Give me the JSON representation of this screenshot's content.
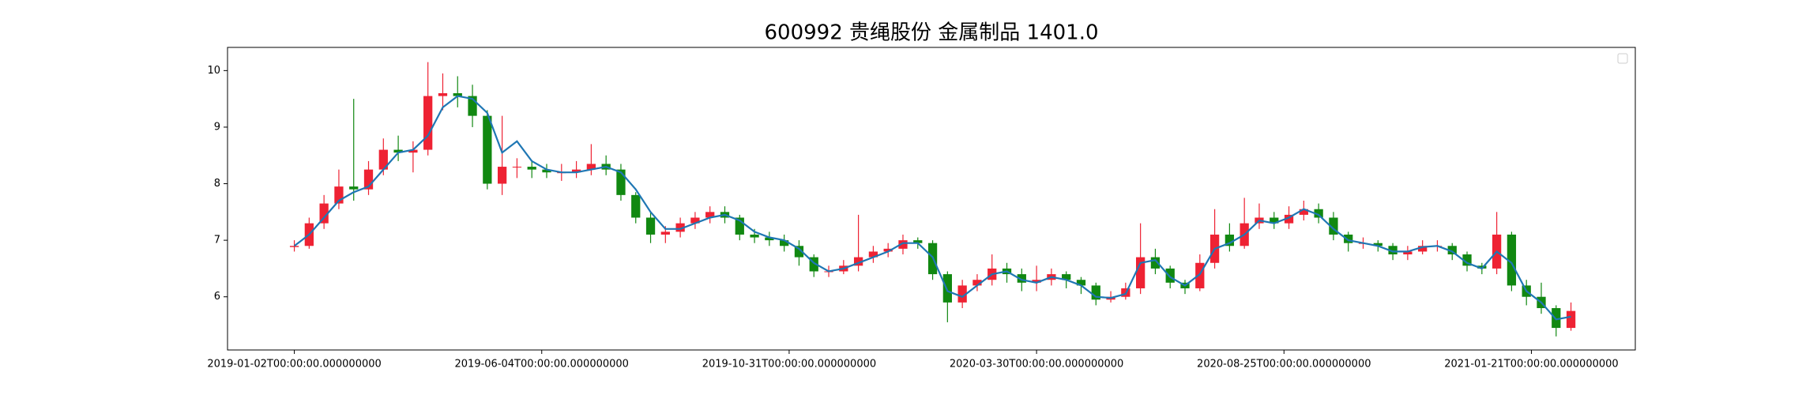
{
  "chart_data": {
    "type": "candlestick",
    "title": "600992 贵绳股份 金属制品 1401.0",
    "x": [
      0,
      6,
      12,
      18,
      24,
      30,
      36,
      42,
      48,
      54,
      60,
      66,
      72,
      78,
      84,
      90,
      96,
      102,
      108,
      114,
      120,
      126,
      132,
      138,
      144,
      150,
      156,
      162,
      168,
      174,
      180,
      186,
      192,
      198,
      204,
      210,
      216,
      222,
      228,
      234,
      240,
      246,
      252,
      258,
      264,
      270,
      276,
      282,
      288,
      294,
      300,
      306,
      312,
      318,
      324,
      330,
      336,
      342,
      348,
      354,
      360,
      366,
      372,
      378,
      384,
      390,
      396,
      402,
      408,
      414,
      420,
      426,
      432,
      438,
      444,
      450,
      456,
      462,
      468,
      474,
      480,
      486,
      492,
      498,
      504,
      510,
      516
    ],
    "open": [
      6.88,
      6.9,
      7.3,
      7.65,
      7.95,
      7.9,
      8.25,
      8.6,
      8.55,
      8.6,
      9.55,
      9.6,
      9.55,
      9.2,
      8.0,
      8.3,
      8.3,
      8.25,
      8.2,
      8.2,
      8.25,
      8.35,
      8.25,
      7.8,
      7.4,
      7.1,
      7.15,
      7.3,
      7.4,
      7.5,
      7.4,
      7.1,
      7.05,
      7.0,
      6.9,
      6.7,
      6.45,
      6.45,
      6.55,
      6.7,
      6.8,
      6.85,
      7.0,
      6.95,
      6.4,
      5.9,
      6.2,
      6.3,
      6.5,
      6.4,
      6.25,
      6.3,
      6.4,
      6.3,
      6.2,
      5.95,
      6.0,
      6.15,
      6.7,
      6.5,
      6.25,
      6.15,
      6.6,
      7.1,
      6.9,
      7.3,
      7.4,
      7.3,
      7.45,
      7.55,
      7.4,
      7.1,
      6.95,
      6.95,
      6.9,
      6.75,
      6.8,
      6.9,
      6.9,
      6.75,
      6.55,
      6.5,
      7.1,
      6.2,
      6.0,
      5.8,
      5.45
    ],
    "high": [
      7.0,
      7.4,
      7.8,
      8.25,
      9.5,
      8.4,
      8.8,
      8.85,
      8.75,
      10.15,
      9.95,
      9.9,
      9.75,
      9.3,
      9.2,
      8.45,
      8.4,
      8.35,
      8.35,
      8.4,
      8.7,
      8.5,
      8.35,
      7.85,
      7.5,
      7.25,
      7.4,
      7.5,
      7.6,
      7.6,
      7.45,
      7.2,
      7.15,
      7.1,
      7.0,
      6.75,
      6.55,
      6.65,
      7.45,
      6.9,
      6.95,
      7.1,
      7.05,
      7.0,
      6.45,
      6.3,
      6.4,
      6.75,
      6.6,
      6.5,
      6.55,
      6.5,
      6.45,
      6.35,
      6.25,
      6.1,
      6.25,
      7.3,
      6.85,
      6.55,
      6.3,
      6.75,
      7.55,
      7.3,
      7.75,
      7.65,
      7.5,
      7.6,
      7.7,
      7.65,
      7.5,
      7.15,
      7.05,
      7.0,
      6.95,
      6.9,
      7.0,
      7.0,
      6.95,
      6.8,
      6.6,
      7.5,
      7.15,
      6.3,
      6.25,
      5.85,
      5.9
    ],
    "low": [
      6.8,
      6.85,
      7.2,
      7.55,
      7.7,
      7.8,
      8.15,
      8.4,
      8.2,
      8.5,
      9.3,
      9.35,
      9.0,
      7.9,
      7.8,
      8.1,
      8.1,
      8.1,
      8.05,
      8.1,
      8.15,
      8.15,
      7.7,
      7.3,
      6.95,
      6.95,
      7.05,
      7.2,
      7.3,
      7.3,
      7.0,
      6.95,
      6.9,
      6.8,
      6.55,
      6.35,
      6.35,
      6.4,
      6.45,
      6.6,
      6.7,
      6.75,
      6.85,
      6.3,
      5.55,
      5.8,
      6.1,
      6.2,
      6.25,
      6.1,
      6.1,
      6.2,
      6.15,
      6.05,
      5.85,
      5.9,
      5.95,
      6.05,
      6.4,
      6.15,
      6.05,
      6.1,
      6.5,
      6.8,
      6.85,
      7.2,
      7.2,
      7.2,
      7.35,
      7.3,
      7.0,
      6.8,
      6.85,
      6.8,
      6.65,
      6.65,
      6.75,
      6.8,
      6.65,
      6.45,
      6.4,
      6.4,
      6.1,
      5.85,
      5.7,
      5.3,
      5.4
    ],
    "close": [
      6.9,
      7.3,
      7.65,
      7.95,
      7.9,
      8.25,
      8.6,
      8.55,
      8.6,
      9.55,
      9.6,
      9.55,
      9.2,
      8.0,
      8.3,
      8.3,
      8.25,
      8.2,
      8.2,
      8.25,
      8.35,
      8.25,
      7.8,
      7.4,
      7.1,
      7.15,
      7.3,
      7.4,
      7.5,
      7.4,
      7.1,
      7.05,
      7.0,
      6.9,
      6.7,
      6.45,
      6.45,
      6.55,
      6.7,
      6.8,
      6.85,
      7.0,
      6.95,
      6.4,
      5.9,
      6.2,
      6.3,
      6.5,
      6.4,
      6.25,
      6.3,
      6.4,
      6.3,
      6.2,
      5.95,
      6.0,
      6.15,
      6.7,
      6.5,
      6.25,
      6.15,
      6.6,
      7.1,
      6.9,
      7.3,
      7.4,
      7.3,
      7.45,
      7.55,
      7.4,
      7.1,
      6.95,
      6.95,
      6.9,
      6.75,
      6.8,
      6.9,
      6.9,
      6.75,
      6.55,
      6.5,
      7.1,
      6.2,
      6.0,
      5.8,
      5.45,
      5.75
    ],
    "up_color": "#ee2233",
    "down_color": "#118811",
    "line": {
      "color": "#1f77b4",
      "values": [
        6.9,
        7.1,
        7.4,
        7.7,
        7.85,
        7.95,
        8.25,
        8.55,
        8.6,
        8.85,
        9.35,
        9.55,
        9.5,
        9.25,
        8.55,
        8.75,
        8.4,
        8.25,
        8.2,
        8.2,
        8.25,
        8.3,
        8.2,
        7.9,
        7.5,
        7.2,
        7.2,
        7.3,
        7.4,
        7.45,
        7.35,
        7.15,
        7.05,
        7.0,
        6.85,
        6.6,
        6.45,
        6.5,
        6.6,
        6.7,
        6.8,
        6.95,
        6.95,
        6.7,
        6.1,
        6.0,
        6.2,
        6.4,
        6.45,
        6.3,
        6.25,
        6.35,
        6.3,
        6.2,
        6.0,
        5.98,
        6.05,
        6.6,
        6.65,
        6.35,
        6.2,
        6.4,
        6.85,
        6.95,
        7.1,
        7.35,
        7.3,
        7.4,
        7.55,
        7.45,
        7.2,
        7.0,
        6.95,
        6.9,
        6.8,
        6.8,
        6.88,
        6.9,
        6.8,
        6.6,
        6.5,
        6.8,
        6.6,
        6.1,
        5.9,
        5.6,
        5.65
      ]
    },
    "xlim": [
      -27,
      542
    ],
    "xticks": [
      {
        "value": 0,
        "label": "2019-01-02T00:00:00.000000000"
      },
      {
        "value": 100,
        "label": "2019-06-04T00:00:00.000000000"
      },
      {
        "value": 200,
        "label": "2019-10-31T00:00:00.000000000"
      },
      {
        "value": 300,
        "label": "2020-03-30T00:00:00.000000000"
      },
      {
        "value": 400,
        "label": "2020-08-25T00:00:00.000000000"
      },
      {
        "value": 500,
        "label": "2021-01-21T00:00:00.000000000"
      }
    ],
    "ylim": [
      5.06,
      10.41
    ],
    "yticks": [
      6,
      7,
      8,
      9,
      10
    ],
    "legend": "upper right"
  }
}
